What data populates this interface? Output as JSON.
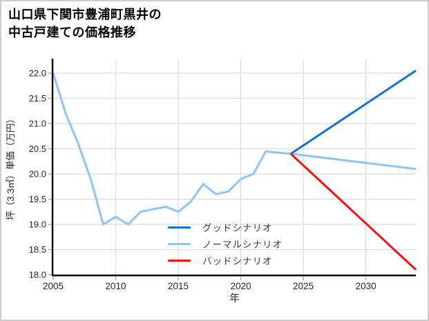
{
  "header": {
    "title_line1": "山口県下関市豊浦町黒井の",
    "title_line2": "中古戸建ての価格推移"
  },
  "styles": {
    "background": "#ffffff",
    "border_color": "#cccccc",
    "grid_color": "#d9d9d9",
    "axis_color": "#000000",
    "tick_color": "#a6a6a6",
    "tick_label_color": "#262626",
    "legend_text_color": "#3a3a3a",
    "good_color": "#1273cd",
    "normal_color": "#8fc3f7",
    "bad_color": "#f70d0d"
  },
  "chart_data": {
    "type": "line",
    "title": "山口県下関市豊浦町黒井の中古戸建ての価格推移",
    "xlabel": "年",
    "ylabel": "坪（3.3㎡）単価（万円）",
    "xlim": [
      2005,
      2034
    ],
    "ylim": [
      18.0,
      22.27
    ],
    "grid": true,
    "legend_position": "inside-lower-center",
    "legend_frame": false,
    "xticks": [
      "2005",
      "2010",
      "2015",
      "2020",
      "2025",
      "2030"
    ],
    "yticks": [
      "22.0",
      "21.5",
      "21.0",
      "20.5",
      "20.0",
      "19.5",
      "19.0",
      "18.5",
      "18.0"
    ],
    "series": [
      {
        "name": "グッドシナリオ",
        "color": "#1273cd",
        "x": [
          2024,
          2034
        ],
        "y": [
          20.4,
          22.05
        ]
      },
      {
        "name": "ノーマルシナリオ",
        "color": "#8fc3f7",
        "x": [
          2005,
          2006,
          2007,
          2008,
          2009,
          2010,
          2011,
          2012,
          2013,
          2014,
          2015,
          2016,
          2017,
          2018,
          2019,
          2020,
          2021,
          2022,
          2023,
          2024,
          2034
        ],
        "y": [
          22.0,
          21.2,
          20.6,
          19.9,
          19.0,
          19.15,
          19.0,
          19.25,
          19.3,
          19.35,
          19.25,
          19.45,
          19.8,
          19.6,
          19.65,
          19.9,
          20.0,
          20.45,
          20.42,
          20.4,
          20.1
        ]
      },
      {
        "name": "バッドシナリオ",
        "color": "#f70d0d",
        "x": [
          2024,
          2034
        ],
        "y": [
          20.4,
          18.1
        ]
      }
    ]
  }
}
